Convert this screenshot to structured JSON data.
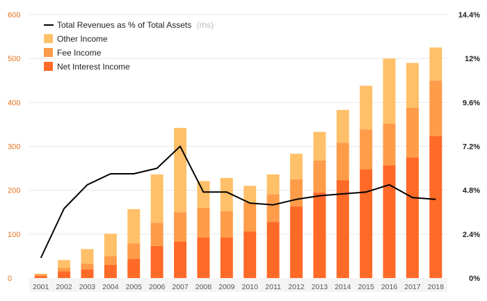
{
  "chart_data": {
    "type": "bar",
    "stacked": true,
    "title": "",
    "xlabel": "",
    "ylabel": "",
    "categories": [
      "2001",
      "2002",
      "2003",
      "2004",
      "2005",
      "2006",
      "2007",
      "2008",
      "2009",
      "2010",
      "2011",
      "2012",
      "2013",
      "2014",
      "2015",
      "2016",
      "2017",
      "2018"
    ],
    "series": [
      {
        "name": "Net Interest Income",
        "color": "#ff6a28",
        "values": [
          5,
          15,
          20,
          30,
          44,
          73,
          83,
          93,
          93,
          106,
          128,
          163,
          195,
          223,
          248,
          257,
          275,
          323
        ]
      },
      {
        "name": "Fee Income",
        "color": "#ff9c4a",
        "values": [
          3,
          8,
          13,
          20,
          35,
          53,
          67,
          67,
          59,
          66,
          63,
          62,
          73,
          85,
          90,
          95,
          113,
          127
        ]
      },
      {
        "name": "Other Income",
        "color": "#ffc069",
        "values": [
          2,
          18,
          33,
          51,
          78,
          110,
          192,
          61,
          76,
          38,
          45,
          58,
          65,
          75,
          100,
          148,
          102,
          75
        ]
      }
    ],
    "line_series": {
      "name": "Total Revenues as % of Total Assets",
      "axis_note": "(rhs)",
      "color": "#000000",
      "axis": "right",
      "values": [
        1.1,
        3.8,
        5.1,
        5.7,
        5.7,
        6.0,
        7.2,
        4.7,
        4.7,
        4.1,
        4.0,
        4.3,
        4.5,
        4.6,
        4.7,
        5.1,
        4.4,
        4.3
      ]
    },
    "ylim": [
      0,
      600
    ],
    "yticks": [
      "0",
      "100",
      "200",
      "300",
      "400",
      "500",
      "600"
    ],
    "y2lim": [
      0,
      14.4
    ],
    "y2ticks": [
      "0%",
      "2.4%",
      "4.8%",
      "7.2%",
      "9.6%",
      "12%",
      "14.4%"
    ],
    "grid": true,
    "legend_position": "top-left",
    "colors": {
      "left_axis": "#e8701e",
      "grid": "#e8e8e8",
      "x_band": "#f4f4f4"
    }
  }
}
